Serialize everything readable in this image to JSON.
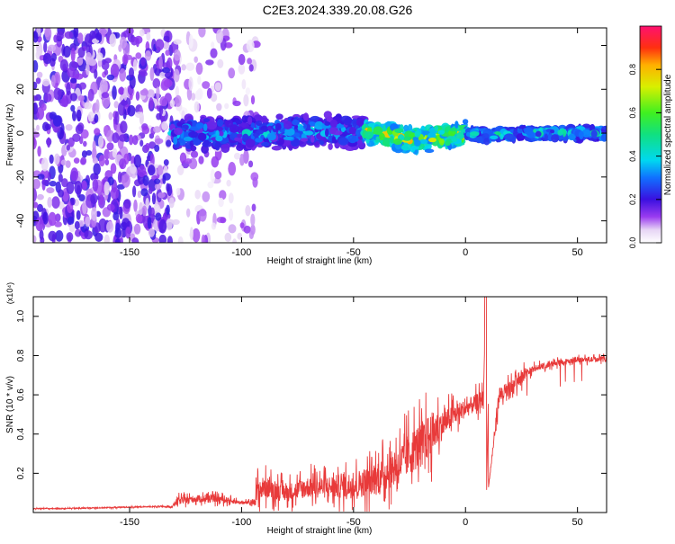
{
  "figure_title": "C2E3.2024.339.20.08.G26",
  "chart_data": [
    {
      "type": "heatmap",
      "title": "C2E3.2024.339.20.08.G26",
      "xlabel": "Height of straight line (km)",
      "ylabel": "Frequency (Hz)",
      "xlim": [
        -193,
        63
      ],
      "ylim": [
        -50,
        48
      ],
      "x_ticks": [
        -150,
        -100,
        -50,
        0,
        50
      ],
      "y_ticks": [
        -40,
        -20,
        0,
        20,
        40
      ],
      "x_tick_labels": [
        "-150",
        "-100",
        "-50",
        "0",
        "50"
      ],
      "y_tick_labels": [
        "-40",
        "-20",
        "0",
        "20",
        "40"
      ],
      "colorbar": {
        "label": "Normalized spectral amplitude",
        "range": [
          0,
          1
        ],
        "ticks": [
          0.0,
          0.2,
          0.4,
          0.6,
          0.8
        ],
        "tick_labels": [
          "0.0",
          "0.2",
          "0.4",
          "0.6",
          "0.8"
        ]
      },
      "regions": [
        {
          "x_range": [
            -193,
            -131
          ],
          "freq_range": [
            -50,
            48
          ],
          "character": "broadband noise",
          "amplitude_range": [
            0.05,
            0.22
          ]
        },
        {
          "x_range": [
            -131,
            -93
          ],
          "freq_range": [
            -50,
            48
          ],
          "character": "sparse noise",
          "amplitude_range": [
            0.02,
            0.15
          ]
        },
        {
          "x_range": [
            -131,
            -45
          ],
          "freq_range": [
            -8,
            8
          ],
          "character": "narrow signal band",
          "amplitude_range": [
            0.15,
            0.45
          ]
        },
        {
          "x_range": [
            -45,
            0
          ],
          "freq_range": [
            -6,
            6
          ],
          "character": "narrow signal band",
          "amplitude_range": [
            0.3,
            0.9
          ]
        },
        {
          "x_range": [
            0,
            63
          ],
          "freq_range": [
            -3,
            3
          ],
          "character": "narrow signal band",
          "amplitude_range": [
            0.2,
            0.55
          ]
        }
      ],
      "centerline_freq": [
        {
          "x": -131,
          "y": 0
        },
        {
          "x": -100,
          "y": 0
        },
        {
          "x": -60,
          "y": 1
        },
        {
          "x": -40,
          "y": 0
        },
        {
          "x": -25,
          "y": -3
        },
        {
          "x": -15,
          "y": -2
        },
        {
          "x": 0,
          "y": 0
        },
        {
          "x": 10,
          "y": -1
        },
        {
          "x": 25,
          "y": 0
        },
        {
          "x": 63,
          "y": 0
        }
      ],
      "grid": false
    },
    {
      "type": "line",
      "xlabel": "Height of straight line (km)",
      "ylabel": "SNR (10 * v/v)",
      "y_multiplier": "(x10⁴)",
      "xlim": [
        -193,
        63
      ],
      "ylim": [
        0,
        1.1
      ],
      "x_ticks": [
        -150,
        -100,
        -50,
        0,
        50
      ],
      "y_ticks": [
        0.2,
        0.4,
        0.6,
        0.8,
        1.0
      ],
      "x_tick_labels": [
        "-150",
        "-100",
        "-50",
        "0",
        "50"
      ],
      "y_tick_labels": [
        "0.2",
        "0.4",
        "0.6",
        "0.8",
        "1.0"
      ],
      "color": "#e83a3a",
      "x": [
        -193,
        -180,
        -160,
        -140,
        -131,
        -129,
        -120,
        -110,
        -100,
        -95,
        -93,
        -90,
        -80,
        -70,
        -60,
        -50,
        -40,
        -30,
        -25,
        -20,
        -15,
        -10,
        -5,
        0,
        5,
        8,
        9,
        10,
        15,
        20,
        25,
        30,
        40,
        50,
        63
      ],
      "y": [
        0.02,
        0.02,
        0.025,
        0.03,
        0.03,
        0.06,
        0.07,
        0.07,
        0.05,
        0.05,
        0.1,
        0.13,
        0.1,
        0.13,
        0.13,
        0.14,
        0.17,
        0.24,
        0.3,
        0.35,
        0.4,
        0.45,
        0.5,
        0.53,
        0.56,
        0.58,
        1.1,
        0.1,
        0.6,
        0.62,
        0.7,
        0.73,
        0.76,
        0.78,
        0.78
      ],
      "noise_amplitude": [
        0.005,
        0.005,
        0.006,
        0.006,
        0.008,
        0.04,
        0.04,
        0.04,
        0.02,
        0.02,
        0.14,
        0.12,
        0.1,
        0.12,
        0.13,
        0.15,
        0.18,
        0.22,
        0.25,
        0.25,
        0.25,
        0.15,
        0.12,
        0.1,
        0.1,
        0.1,
        0.0,
        0.0,
        0.1,
        0.1,
        0.07,
        0.04,
        0.03,
        0.03,
        0.03
      ],
      "grid": false
    }
  ]
}
